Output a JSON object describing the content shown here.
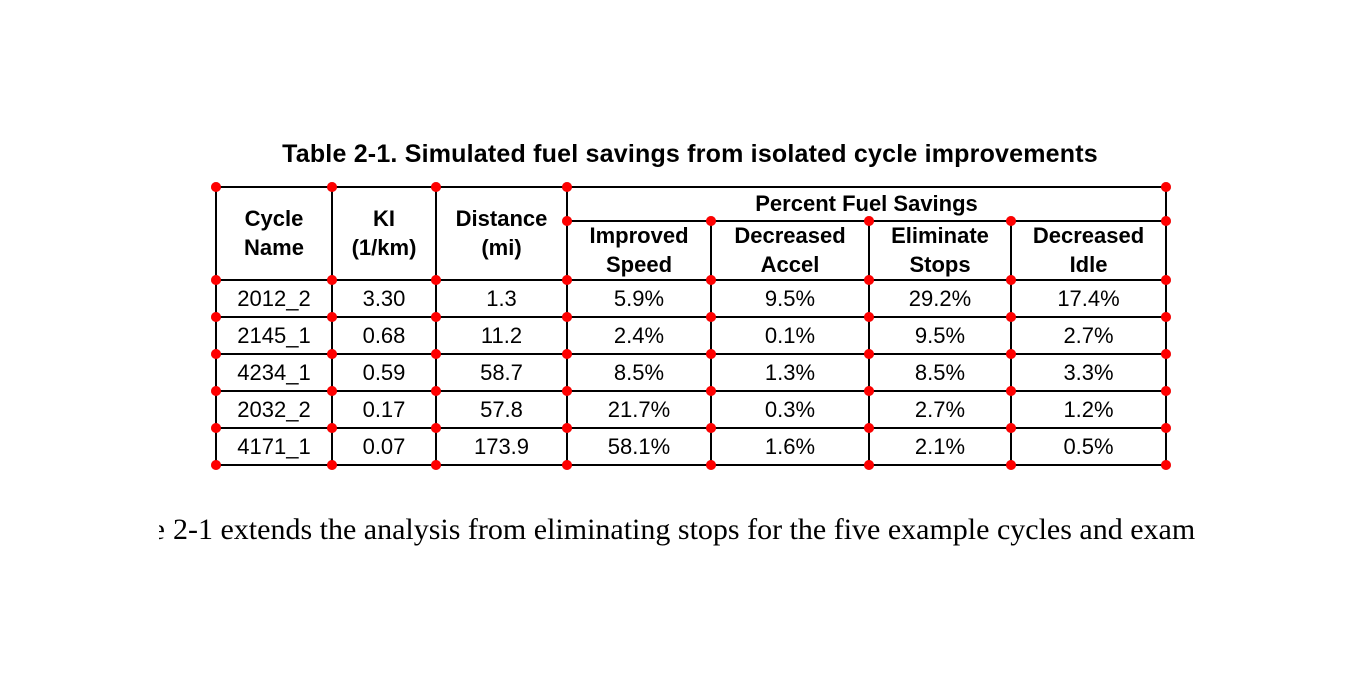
{
  "page": {
    "background": "#ffffff",
    "dot_color": "#ff0000",
    "line_color": "#000000"
  },
  "table": {
    "title": "Table 2-1. Simulated fuel savings from isolated cycle improvements",
    "header": {
      "cycle_name": "Cycle\nName",
      "ki": "KI\n(1/km)",
      "distance": "Distance\n(mi)",
      "group": "Percent Fuel Savings",
      "sub": [
        "Improved\nSpeed",
        "Decreased\nAccel",
        "Eliminate\nStops",
        "Decreased\nIdle"
      ]
    },
    "rows": [
      [
        "2012_2",
        "3.30",
        "1.3",
        "5.9%",
        "9.5%",
        "29.2%",
        "17.4%"
      ],
      [
        "2145_1",
        "0.68",
        "11.2",
        "2.4%",
        "0.1%",
        "9.5%",
        "2.7%"
      ],
      [
        "4234_1",
        "0.59",
        "58.7",
        "8.5%",
        "1.3%",
        "8.5%",
        "3.3%"
      ],
      [
        "2032_2",
        "0.17",
        "57.8",
        "21.7%",
        "0.3%",
        "2.7%",
        "1.2%"
      ],
      [
        "4171_1",
        "0.07",
        "173.9",
        "58.1%",
        "1.6%",
        "2.1%",
        "0.5%"
      ]
    ]
  },
  "body_text": {
    "clipped_left_fragment": "e",
    "visible": "2-1 extends the analysis from eliminating stops for the five example cycles and exam"
  }
}
